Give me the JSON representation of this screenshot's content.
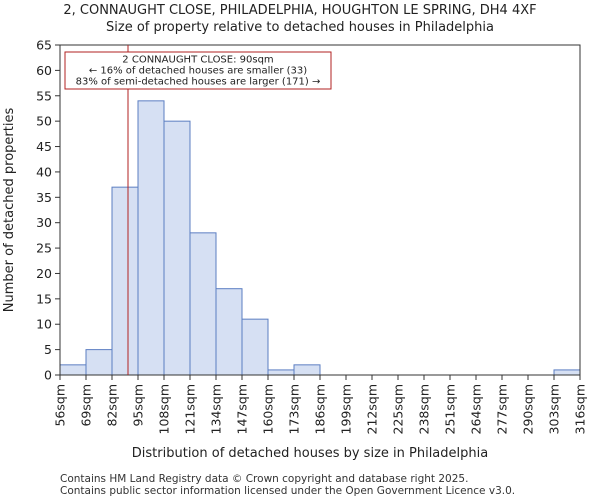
{
  "chart_data": {
    "type": "bar",
    "title_line1": "2, CONNAUGHT CLOSE, PHILADELPHIA, HOUGHTON LE SPRING, DH4 4XF",
    "title_line2": "Size of property relative to detached houses in Philadelphia",
    "xlabel": "Distribution of detached houses by size in Philadelphia",
    "ylabel": "Number of detached properties",
    "ylim": [
      0,
      65
    ],
    "y_ticks": [
      0,
      5,
      10,
      15,
      20,
      25,
      30,
      35,
      40,
      45,
      50,
      55,
      60,
      65
    ],
    "bin_edges": [
      56,
      69,
      82,
      95,
      108,
      121,
      134,
      147,
      160,
      173,
      186,
      199,
      212,
      225,
      238,
      251,
      264,
      277,
      290,
      303,
      316
    ],
    "tick_labels": [
      "56sqm",
      "69sqm",
      "82sqm",
      "95sqm",
      "108sqm",
      "121sqm",
      "134sqm",
      "147sqm",
      "160sqm",
      "173sqm",
      "186sqm",
      "199sqm",
      "212sqm",
      "225sqm",
      "238sqm",
      "251sqm",
      "264sqm",
      "277sqm",
      "290sqm",
      "303sqm",
      "316sqm"
    ],
    "values": [
      2,
      5,
      37,
      54,
      50,
      28,
      17,
      11,
      1,
      2,
      0,
      0,
      0,
      0,
      0,
      0,
      0,
      0,
      0,
      1
    ],
    "bar_color": "#d6e0f3",
    "bar_edge_color": "#5b7ec2",
    "marker": {
      "value": 90,
      "color": "#b22222"
    },
    "annotation": {
      "line1": "2 CONNAUGHT CLOSE: 90sqm",
      "line2": "← 16% of detached houses are smaller (33)",
      "line3": "83% of semi-detached houses are larger (171) →",
      "border_color": "#b22222"
    },
    "grid": false
  },
  "footer": {
    "line1": "Contains HM Land Registry data © Crown copyright and database right 2025.",
    "line2": "Contains public sector information licensed under the Open Government Licence v3.0."
  }
}
